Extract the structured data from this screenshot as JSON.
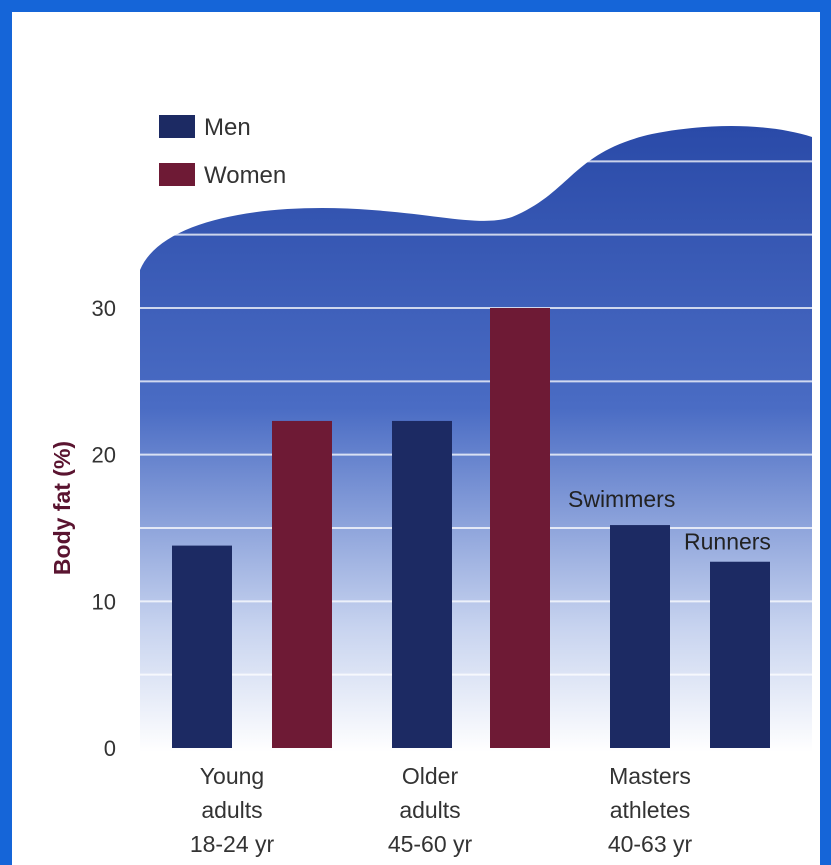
{
  "chart_data": {
    "type": "bar",
    "title": "",
    "xlabel": "",
    "ylabel": "Body fat (%)",
    "ylim": [
      0,
      30
    ],
    "yticks": [
      0,
      10,
      20,
      30
    ],
    "grid": true,
    "legend_position": "top-left",
    "colors": {
      "Men": "#1c2a63",
      "Women": "#6e1a35",
      "background_top": "#2b4aa6",
      "background_bottom": "#ffffff"
    },
    "legend": [
      {
        "name": "Men",
        "color": "#1c2a63"
      },
      {
        "name": "Women",
        "color": "#6e1a35"
      }
    ],
    "categories": [
      {
        "lines": [
          "Young",
          "adults",
          "18-24 yr"
        ]
      },
      {
        "lines": [
          "Older",
          "adults",
          "45-60 yr"
        ]
      },
      {
        "lines": [
          "Masters",
          "athletes",
          "40-63 yr"
        ]
      }
    ],
    "bars": [
      {
        "category": 0,
        "series": "Men",
        "value": 13.8,
        "label": ""
      },
      {
        "category": 0,
        "series": "Women",
        "value": 22.3,
        "label": ""
      },
      {
        "category": 1,
        "series": "Men",
        "value": 22.3,
        "label": ""
      },
      {
        "category": 1,
        "series": "Women",
        "value": 30.0,
        "label": ""
      },
      {
        "category": 2,
        "series": "Men",
        "value": 15.2,
        "label": "Swimmers"
      },
      {
        "category": 2,
        "series": "Men",
        "value": 12.7,
        "label": "Runners"
      }
    ]
  }
}
